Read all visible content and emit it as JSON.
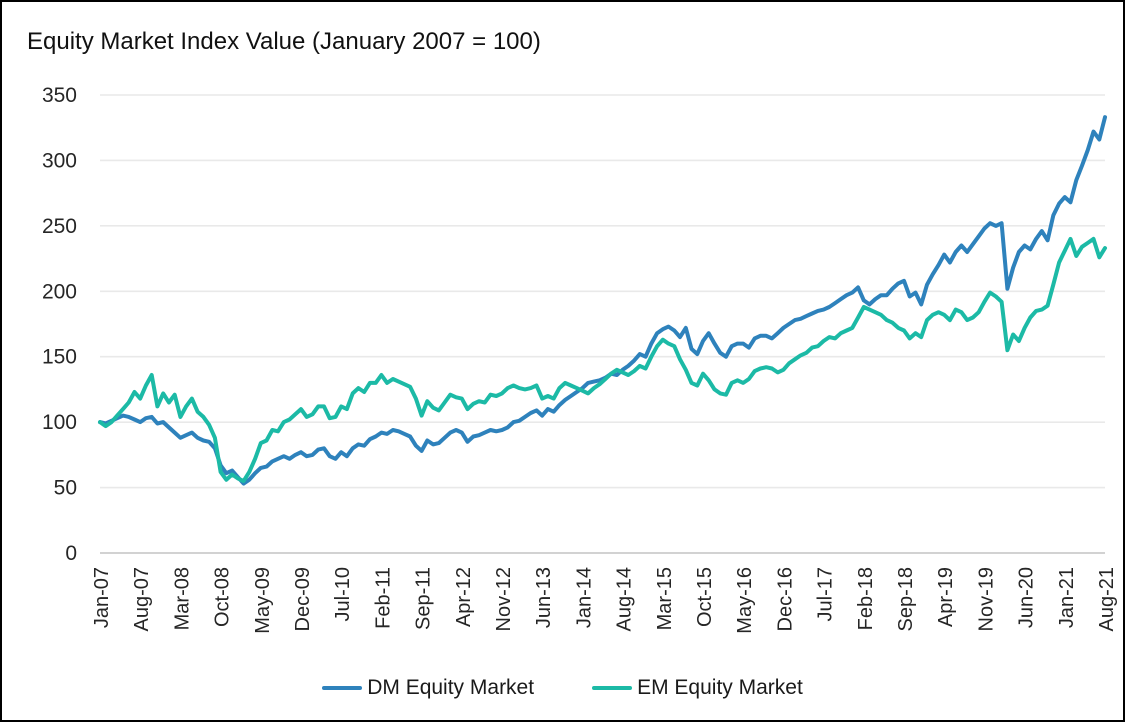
{
  "chart_data": {
    "type": "line",
    "title": "Equity Market Index Value (January 2007 = 100)",
    "x_unit": "month",
    "x_start": "Jan-07",
    "x_end": "Aug-21",
    "x_tick_step_months": 7,
    "x_tick_labels": [
      "Jan-07",
      "Aug-07",
      "Mar-08",
      "Oct-08",
      "May-09",
      "Dec-09",
      "Jul-10",
      "Feb-11",
      "Sep-11",
      "Apr-12",
      "Nov-12",
      "Jun-13",
      "Jan-14",
      "Aug-14",
      "Mar-15",
      "Oct-15",
      "May-16",
      "Dec-16",
      "Jul-17",
      "Feb-18",
      "Sep-18",
      "Apr-19",
      "Nov-19",
      "Jun-20",
      "Jan-21",
      "Aug-21"
    ],
    "y_ticks": [
      0,
      50,
      100,
      150,
      200,
      250,
      300,
      350
    ],
    "ylim": [
      0,
      350
    ],
    "grid": "horizontal-light",
    "legend_position": "bottom-center",
    "series": [
      {
        "name": "DM Equity Market",
        "color": "#2E82BC",
        "values": [
          100,
          99,
          101,
          103,
          105,
          104,
          102,
          100,
          103,
          104,
          99,
          100,
          96,
          92,
          88,
          90,
          92,
          88,
          86,
          85,
          80,
          67,
          61,
          63,
          58,
          53,
          56,
          61,
          65,
          66,
          70,
          72,
          74,
          72,
          75,
          77,
          74,
          75,
          79,
          80,
          74,
          72,
          77,
          74,
          80,
          83,
          82,
          87,
          89,
          92,
          91,
          94,
          93,
          91,
          89,
          82,
          78,
          86,
          83,
          84,
          88,
          92,
          94,
          92,
          85,
          89,
          90,
          92,
          94,
          93,
          94,
          96,
          100,
          101,
          104,
          107,
          109,
          105,
          110,
          108,
          113,
          117,
          120,
          123,
          126,
          130,
          131,
          132,
          134,
          137,
          136,
          140,
          143,
          147,
          152,
          150,
          160,
          168,
          171,
          173,
          170,
          165,
          172,
          156,
          152,
          162,
          168,
          160,
          153,
          150,
          158,
          160,
          160,
          157,
          164,
          166,
          166,
          164,
          168,
          172,
          175,
          178,
          179,
          181,
          183,
          185,
          186,
          188,
          191,
          194,
          197,
          199,
          203,
          193,
          190,
          194,
          197,
          197,
          202,
          206,
          208,
          196,
          199,
          190,
          205,
          213,
          220,
          228,
          222,
          230,
          235,
          230,
          236,
          242,
          248,
          252,
          250,
          252,
          202,
          218,
          230,
          235,
          232,
          240,
          246,
          239,
          258,
          267,
          272,
          268,
          285,
          296,
          308,
          322,
          316,
          333
        ]
      },
      {
        "name": "EM Equity Market",
        "color": "#1CBAA6",
        "values": [
          100,
          97,
          100,
          105,
          110,
          115,
          123,
          118,
          128,
          136,
          112,
          122,
          115,
          121,
          104,
          112,
          118,
          108,
          104,
          98,
          88,
          62,
          56,
          60,
          57,
          55,
          62,
          72,
          84,
          86,
          94,
          93,
          100,
          102,
          106,
          110,
          104,
          106,
          112,
          112,
          103,
          104,
          112,
          110,
          122,
          126,
          123,
          130,
          130,
          136,
          130,
          133,
          131,
          129,
          127,
          118,
          105,
          116,
          111,
          109,
          115,
          121,
          119,
          118,
          110,
          114,
          116,
          115,
          121,
          120,
          122,
          126,
          128,
          126,
          125,
          126,
          128,
          118,
          120,
          118,
          126,
          130,
          128,
          126,
          124,
          122,
          126,
          129,
          133,
          137,
          140,
          138,
          136,
          139,
          143,
          141,
          150,
          158,
          163,
          160,
          158,
          148,
          140,
          130,
          128,
          137,
          132,
          125,
          122,
          121,
          130,
          132,
          130,
          133,
          139,
          141,
          142,
          141,
          138,
          140,
          145,
          148,
          151,
          153,
          157,
          158,
          162,
          165,
          164,
          168,
          170,
          172,
          180,
          188,
          186,
          184,
          182,
          178,
          176,
          172,
          170,
          164,
          168,
          165,
          178,
          182,
          184,
          182,
          178,
          186,
          184,
          178,
          180,
          184,
          192,
          199,
          196,
          192,
          155,
          167,
          162,
          172,
          180,
          185,
          186,
          189,
          205,
          222,
          231,
          240,
          227,
          234,
          237,
          240,
          226,
          233
        ]
      }
    ]
  },
  "colors": {
    "background": "#FFFFFF",
    "border": "#000000",
    "grid": "#E9E9E9",
    "axis_baseline": "#D2D2D2",
    "tick_text": "#262626",
    "title_text": "#111111"
  },
  "layout_text": {
    "legend_dm": "DM Equity Market",
    "legend_em": "EM Equity Market"
  }
}
